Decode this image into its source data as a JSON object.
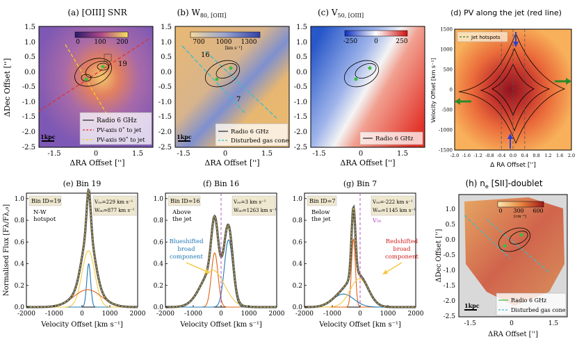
{
  "colors": {
    "oiii_snr_bg": "#8a5fb8",
    "oiii_snr_hot": "#f2c46a",
    "w80_bg": "#eab970",
    "w80_blue": "#7b8ed0",
    "v50_blue": "#2f5fd0",
    "v50_red": "#e23a2a",
    "pv_red": "#b0222a",
    "pv_orange": "#f39a4a",
    "ne_bg": "#d9d9d9",
    "ne_orange": "#f2b15a",
    "ne_red": "#c94a3a",
    "line_total": "#555555",
    "line_fit": "#f0d040",
    "comp_blue": "#1f77b4",
    "comp_orange": "#e06010",
    "comp_yellow": "#f5c842",
    "axis_red": "#e03030",
    "axis_yellow": "#f0d020",
    "axis_cyan": "#30c0d0",
    "jet_green": "#2a8a2a",
    "marker_purple": "#b040c0"
  },
  "chart_data": [
    {
      "id": "a",
      "type": "heatmap",
      "title": "(a) [OIII] SNR",
      "xlabel": "ΔRA Offset ['']",
      "ylabel": "ΔDec Offset ['']",
      "xticks": [
        "-1.5",
        "0",
        "1.5"
      ],
      "yticks": [
        "1.5",
        "1.0",
        "0.5",
        "0.0",
        "-0.5",
        "-1.0",
        "-1.5",
        "-2.0",
        "-2.5"
      ],
      "colorbar": {
        "range": [
          0,
          200
        ],
        "ticks": [
          "0",
          "100",
          "200"
        ]
      },
      "annotations": [
        "19"
      ],
      "scalebar": "1kpc",
      "legend": [
        "Radio 6 GHz",
        "PV-axis 0˚ to jet",
        "PV-axis 90˚ to jet"
      ]
    },
    {
      "id": "b",
      "type": "heatmap",
      "title_prefix": "(b) W",
      "title_sub": "80, [OIII]",
      "xlabel": "ΔRA Offset ['']",
      "xticks": [
        "-1.5",
        "0",
        "1.5"
      ],
      "yticks": [
        "1.5",
        "1.0",
        "0.5",
        "0.0",
        "-0.5",
        "-1.0",
        "-1.5",
        "-2.0",
        "-2.5"
      ],
      "colorbar": {
        "range": [
          700,
          1300
        ],
        "ticks": [
          "700",
          "1000",
          "1300"
        ],
        "unit": "[km s⁻¹]"
      },
      "annotations": [
        "16",
        "7"
      ],
      "scalebar": "1kpc",
      "legend": [
        "Radio 6 GHz",
        "Disturbed gas cone"
      ]
    },
    {
      "id": "c",
      "type": "heatmap",
      "title_prefix": "(c) V",
      "title_sub": "50, [OIII]",
      "xlabel": "ΔRA Offset ['']",
      "xticks": [
        "-1.5",
        "0",
        "1.5"
      ],
      "yticks": [
        "1.5",
        "1.0",
        "0.5",
        "0.0",
        "-0.5",
        "-1.0",
        "-1.5",
        "-2.0",
        "-2.5"
      ],
      "colorbar": {
        "range": [
          -250,
          250
        ],
        "ticks": [
          "-250",
          "0",
          "250"
        ]
      },
      "legend": [
        "Radio 6 GHz"
      ]
    },
    {
      "id": "d",
      "type": "heatmap",
      "title": "(d) PV along the jet (red line)",
      "xlabel": "Δ RA Offset ['']",
      "ylabel": "Velocity Offset [km s⁻¹]",
      "xlim": [
        -2.0,
        2.0
      ],
      "ylim": [
        -1500,
        1500
      ],
      "xticks": [
        "-2.0",
        "-1.6",
        "-1.2",
        "-0.8",
        "-0.4",
        "0.0",
        "0.4",
        "0.8",
        "1.2",
        "1.6",
        "2.0"
      ],
      "yticks": [
        "1500",
        "1000",
        "500",
        "0",
        "-500",
        "-1000",
        "-1500"
      ],
      "vlines": [
        -0.4,
        0.0,
        0.4
      ],
      "legend": [
        "Jet hotspots"
      ]
    },
    {
      "id": "e",
      "type": "line",
      "title": "(e) Bin 19",
      "xlabel": "Velocity Offset [km s⁻¹]",
      "ylabel": "Normalised Flux [Fλ/Fλ,₀]",
      "xlim": [
        -2000,
        2000
      ],
      "ylim": [
        0,
        1.05
      ],
      "xticks": [
        "-2000",
        "-1000",
        "0",
        "1000",
        "2000"
      ],
      "yticks": [
        "0.0",
        "0.2",
        "0.4",
        "0.6",
        "0.8",
        "1.0"
      ],
      "bin_label": "Bin ID=19",
      "note": [
        "N-W",
        "hotspot"
      ],
      "v50": "V₅₀=229 km s⁻¹",
      "w80": "W₈₀=877 km s⁻¹",
      "components": [
        {
          "name": "narrow",
          "color": "#1f77b4",
          "amp": 0.4,
          "mu": 240,
          "sigma": 70
        },
        {
          "name": "medium",
          "color": "#f5c842",
          "amp": 0.52,
          "mu": 230,
          "sigma": 230
        },
        {
          "name": "broad",
          "color": "#e06010",
          "amp": 0.16,
          "mu": 200,
          "sigma": 500
        }
      ]
    },
    {
      "id": "f",
      "type": "line",
      "title": "(f) Bin 16",
      "xlabel": "Velocity Offset [km s⁻¹]",
      "xlim": [
        -2000,
        2000
      ],
      "ylim": [
        0,
        1.05
      ],
      "xticks": [
        "-2000",
        "-1000",
        "0",
        "1000",
        "2000"
      ],
      "yticks": [
        "0.0",
        "0.2",
        "0.4",
        "0.6",
        "0.8",
        "1.0"
      ],
      "bin_label": "Bin ID=16",
      "note": [
        "Above",
        "the jet"
      ],
      "v50": "V₅₀=3 km s⁻¹",
      "w80": "W₈₀=1263 km s⁻¹",
      "component_label": [
        "Blueshifted",
        "broad",
        "component"
      ],
      "components": [
        {
          "name": "narrow-blue",
          "color": "#e06010",
          "amp": 0.5,
          "mu": -230,
          "sigma": 120
        },
        {
          "name": "narrow-red",
          "color": "#1f77b4",
          "amp": 0.62,
          "mu": 270,
          "sigma": 150
        },
        {
          "name": "broad",
          "color": "#f5c842",
          "amp": 0.34,
          "mu": -300,
          "sigma": 420
        }
      ]
    },
    {
      "id": "g",
      "type": "line",
      "title": "(g) Bin 7",
      "xlabel": "Velocity Offset [km s⁻¹]",
      "xlim": [
        -2000,
        2000
      ],
      "ylim": [
        0,
        1.05
      ],
      "xticks": [
        "-2000",
        "-1000",
        "0",
        "1000",
        "2000"
      ],
      "yticks": [
        "0.0",
        "0.2",
        "0.4",
        "0.6",
        "0.8",
        "1.0"
      ],
      "bin_label": "Bin ID=7",
      "note": [
        "Below",
        "the jet"
      ],
      "v50": "V₅₀=-222 km s⁻¹",
      "w80": "W₈₀=1145 km s⁻¹",
      "marker": "V₅₀",
      "component_label": [
        "Redshifted",
        "broad",
        "component"
      ],
      "components": [
        {
          "name": "narrow",
          "color": "#e06010",
          "amp": 0.63,
          "mu": -240,
          "sigma": 70
        },
        {
          "name": "medium",
          "color": "#1f77b4",
          "amp": 0.12,
          "mu": -600,
          "sigma": 380
        },
        {
          "name": "broad",
          "color": "#f5c842",
          "amp": 0.26,
          "mu": -30,
          "sigma": 330
        }
      ]
    },
    {
      "id": "h",
      "type": "heatmap",
      "title_prefix": "(h) n",
      "title_sub": "e",
      "title_suffix": " [SII]-doublet",
      "xlabel": "ΔRA Offset ['']",
      "ylabel": "ΔDec Offset ['']",
      "xticks": [
        "-1.5",
        "0",
        "1.5"
      ],
      "yticks": [
        "1.0",
        "0.5",
        "0.0",
        "-0.5",
        "-1.0",
        "-1.5",
        "-2.0",
        "-2.5"
      ],
      "colorbar": {
        "range": [
          0,
          600
        ],
        "ticks": [
          "0",
          "300",
          "600"
        ],
        "unit": "[cm⁻³]"
      },
      "scalebar": "1kpc",
      "legend": [
        "Radio 6 GHz",
        "Disturbed gas cone"
      ]
    }
  ]
}
